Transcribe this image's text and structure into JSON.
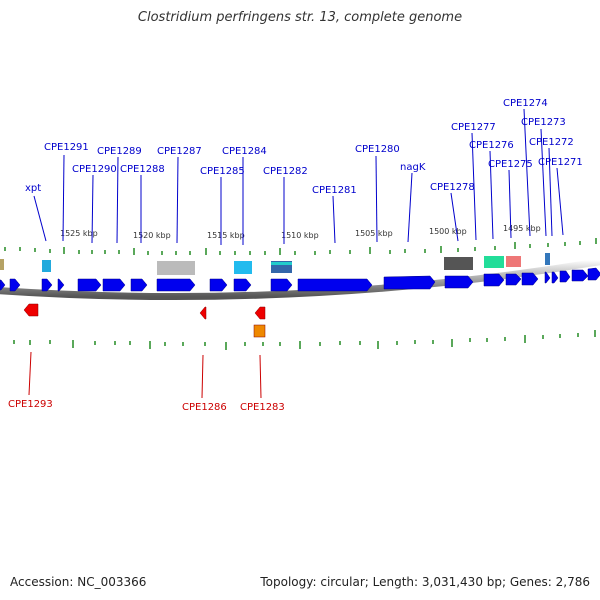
{
  "title": "Clostridium perfringens str. 13, complete genome",
  "footer": {
    "accession": "Accession: NC_003366",
    "summary": "Topology: circular; Length: 3,031,430 bp; Genes: 2,786"
  },
  "scale_ticks": [
    "1525 kbp",
    "1520 kbp",
    "1515 kbp",
    "1510 kbp",
    "1505 kbp",
    "1500 kbp",
    "1495 kbp"
  ],
  "forward_labels": [
    "xpt",
    "CPE1291",
    "CPE1290",
    "CPE1289",
    "CPE1288",
    "CPE1287",
    "CPE1285",
    "CPE1284",
    "CPE1282",
    "CPE1281",
    "CPE1280",
    "nagK",
    "CPE1278",
    "CPE1277",
    "CPE1276",
    "CPE1275",
    "CPE1274",
    "CPE1273",
    "CPE1272",
    "CPE1271"
  ],
  "reverse_labels": [
    "CPE1293",
    "CPE1286",
    "CPE1283"
  ],
  "colors": {
    "forward_gene": "#0000ee",
    "reverse_gene": "#ee0000",
    "forward_label": "#0000cc",
    "reverse_label": "#cc0000",
    "tick": "#228b22",
    "backbone": "#999999"
  }
}
